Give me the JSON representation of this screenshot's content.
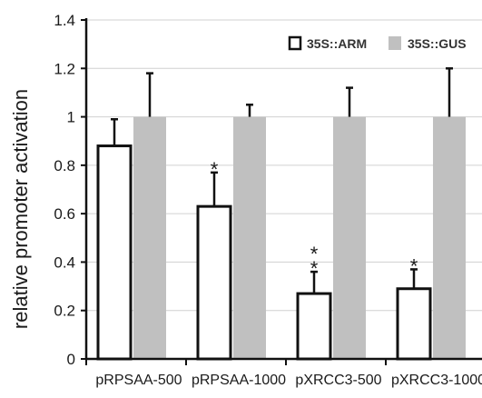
{
  "chart_data": {
    "type": "bar",
    "title": "",
    "xlabel": "",
    "ylabel": "relative promoter activation",
    "ylim": [
      0,
      1.4
    ],
    "yticks": [
      "0",
      "0.2",
      "0.4",
      "0.6",
      "0.8",
      "1",
      "1.2",
      "1.4"
    ],
    "categories": [
      "pRPSAA-500",
      "pRPSAA-1000",
      "pXRCC3-500",
      "pXRCC3-1000"
    ],
    "legend_position": "top-right",
    "series": [
      {
        "name": "35S::ARM",
        "color": "#ffffff",
        "stroke": "#111111",
        "values": [
          0.88,
          0.63,
          0.27,
          0.29
        ],
        "error": [
          0.11,
          0.14,
          0.09,
          0.08
        ],
        "significance": [
          "",
          "*",
          "**",
          "*"
        ]
      },
      {
        "name": "35S::GUS",
        "color": "#c0c0c0",
        "stroke": "none",
        "values": [
          1.0,
          1.0,
          1.0,
          1.0
        ],
        "error": [
          0.18,
          0.05,
          0.12,
          0.2
        ],
        "significance": [
          "",
          "",
          "",
          ""
        ]
      }
    ]
  }
}
